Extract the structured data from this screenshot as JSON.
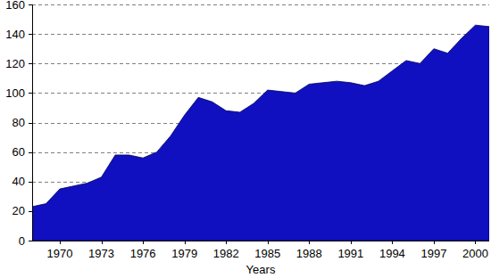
{
  "chart_data": {
    "type": "area",
    "x_label": "Years",
    "x": [
      1968,
      1969,
      1970,
      1971,
      1972,
      1973,
      1974,
      1975,
      1976,
      1977,
      1978,
      1979,
      1980,
      1981,
      1982,
      1983,
      1984,
      1985,
      1986,
      1987,
      1988,
      1989,
      1990,
      1991,
      1992,
      1993,
      1994,
      1995,
      1996,
      1997,
      1998,
      1999,
      2000,
      2001
    ],
    "values": [
      23,
      25,
      35,
      37,
      39,
      43,
      58,
      58,
      56,
      60,
      71,
      85,
      97,
      94,
      88,
      87,
      93,
      102,
      101,
      100,
      106,
      107,
      108,
      107,
      105,
      108,
      115,
      122,
      120,
      130,
      127,
      137,
      146,
      145
    ],
    "color": "#1010c0",
    "xlim": [
      1968,
      2001
    ],
    "xticks": [
      1970,
      1973,
      1976,
      1979,
      1982,
      1985,
      1988,
      1991,
      1994,
      1997,
      2000
    ],
    "ylim": [
      0,
      160
    ],
    "yticks": [
      0,
      20,
      40,
      60,
      80,
      100,
      120,
      140,
      160
    ],
    "grid": true
  }
}
